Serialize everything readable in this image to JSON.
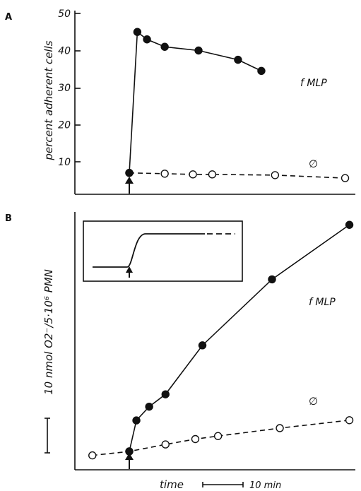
{
  "chart_data": [
    {
      "panel": "A",
      "type": "line",
      "ylabel": "percent adherent cells",
      "ylim": [
        0,
        50
      ],
      "yticks": [
        10,
        20,
        30,
        40,
        50
      ],
      "series": [
        {
          "name": "f MLP",
          "style": "solid-filled",
          "x": [
            0,
            1,
            2.2,
            4.4,
            8.6,
            13.5,
            16.4
          ],
          "y": [
            7,
            45,
            43,
            41,
            40,
            37.5,
            34.5
          ]
        },
        {
          "name": "∅",
          "style": "dashed-open",
          "x": [
            0,
            4.4,
            7.9,
            10.3,
            18.1,
            26.8
          ],
          "y": [
            7,
            6.8,
            6.6,
            6.6,
            6.4,
            5.6
          ]
        }
      ]
    },
    {
      "panel": "B",
      "type": "line",
      "ylabel": "10 nmol O2⁻/5·10⁶ PMN",
      "xlabel": "time",
      "scale_text": "10 min",
      "series": [
        {
          "name": "f MLP",
          "style": "solid-filled",
          "x": [
            0,
            1,
            2.8,
            5.1,
            10.3,
            20.1,
            31
          ],
          "y": [
            0,
            1.33,
            1.92,
            2.45,
            4.55,
            7.38,
            9.72
          ]
        },
        {
          "name": "∅",
          "style": "dashed-open",
          "x": [
            -5.2,
            0,
            5.1,
            9.3,
            12.5,
            21.2,
            31
          ],
          "y": [
            -0.17,
            0,
            0.3,
            0.53,
            0.66,
            1.0,
            1.34
          ]
        }
      ]
    }
  ],
  "labels": {
    "panel_a": "A",
    "panel_b": "B"
  }
}
